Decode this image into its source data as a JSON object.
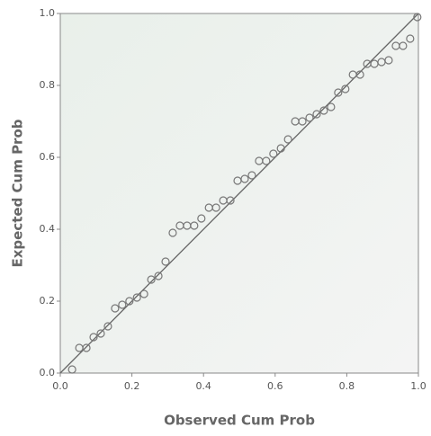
{
  "chart_data": {
    "type": "scatter",
    "xlabel": "Observed Cum Prob",
    "ylabel": "Expected Cum Prob",
    "x": [
      0.033,
      0.053,
      0.073,
      0.093,
      0.113,
      0.133,
      0.153,
      0.173,
      0.193,
      0.214,
      0.234,
      0.254,
      0.274,
      0.294,
      0.314,
      0.334,
      0.354,
      0.374,
      0.394,
      0.415,
      0.435,
      0.455,
      0.475,
      0.495,
      0.515,
      0.535,
      0.555,
      0.575,
      0.595,
      0.616,
      0.636,
      0.656,
      0.676,
      0.696,
      0.716,
      0.736,
      0.756,
      0.776,
      0.796,
      0.817,
      0.837,
      0.857,
      0.877,
      0.897,
      0.917,
      0.937,
      0.957,
      0.977,
      0.997
    ],
    "values": [
      0.01,
      0.07,
      0.07,
      0.1,
      0.11,
      0.13,
      0.18,
      0.19,
      0.2,
      0.21,
      0.22,
      0.26,
      0.27,
      0.31,
      0.39,
      0.41,
      0.41,
      0.41,
      0.43,
      0.46,
      0.46,
      0.48,
      0.48,
      0.535,
      0.54,
      0.55,
      0.59,
      0.59,
      0.61,
      0.625,
      0.65,
      0.7,
      0.7,
      0.71,
      0.72,
      0.73,
      0.74,
      0.78,
      0.79,
      0.83,
      0.83,
      0.86,
      0.86,
      0.865,
      0.87,
      0.91,
      0.91,
      0.93,
      0.99
    ],
    "color": "#777777",
    "xlim": [
      0,
      1
    ],
    "ylim": [
      0,
      1
    ],
    "xticks": [
      {
        "value": 0,
        "label": "0.0"
      },
      0.2,
      0.4,
      0.6,
      0.8,
      {
        "value": 1,
        "label": "1.0"
      }
    ],
    "yticks": [
      {
        "value": 0,
        "label": "0.0"
      },
      0.2,
      0.4,
      0.6,
      0.8,
      {
        "value": 1,
        "label": "1.0"
      }
    ]
  }
}
